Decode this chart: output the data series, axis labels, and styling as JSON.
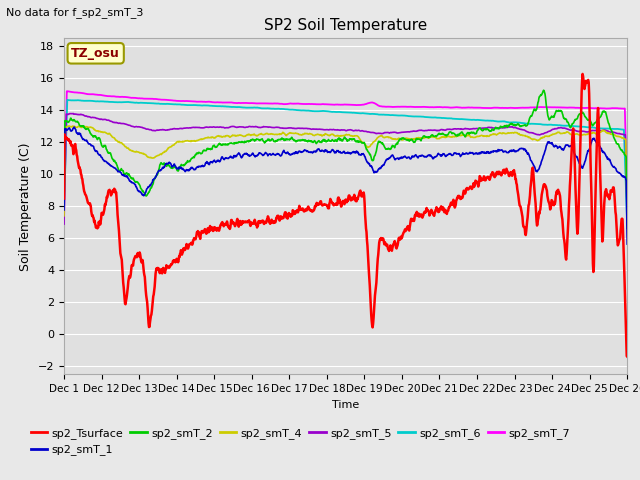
{
  "title": "SP2 Soil Temperature",
  "subtitle": "No data for f_sp2_smT_3",
  "xlabel": "Time",
  "ylabel": "Soil Temperature (C)",
  "ylim": [
    -2.5,
    18.5
  ],
  "yticks": [
    -2,
    0,
    2,
    4,
    6,
    8,
    10,
    12,
    14,
    16,
    18
  ],
  "xtick_labels": [
    "Dec 1",
    "Dec 12",
    "Dec 13",
    "Dec 14",
    "Dec 15",
    "Dec 16",
    "Dec 17",
    "Dec 18",
    "Dec 19",
    "Dec 20",
    "Dec 21",
    "Dec 22",
    "Dec 23",
    "Dec 24",
    "Dec 25",
    "Dec 26"
  ],
  "tz_label": "TZ_osu",
  "bg_color": "#e8e8e8",
  "plot_bg_color": "#e0e0e0",
  "grid_color": "#ffffff",
  "series_colors": {
    "sp2_Tsurface": "#ff0000",
    "sp2_smT_1": "#0000cc",
    "sp2_smT_2": "#00cc00",
    "sp2_smT_4": "#cccc00",
    "sp2_smT_5": "#9900cc",
    "sp2_smT_6": "#00cccc",
    "sp2_smT_7": "#ff00ff"
  }
}
